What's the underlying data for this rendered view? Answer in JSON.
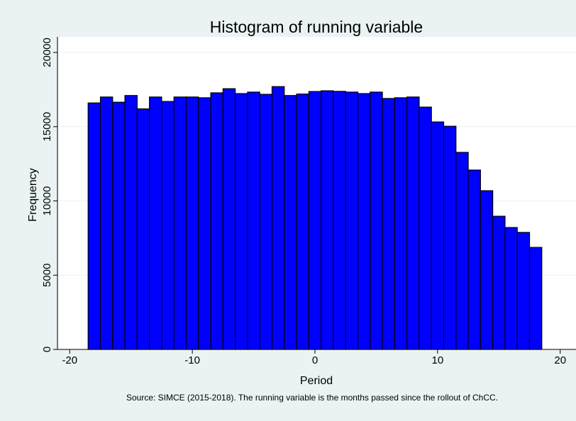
{
  "chart_data": {
    "type": "histogram",
    "title": "Histogram of running variable",
    "xlabel": "Period",
    "ylabel": "Frequency",
    "note": "Source: SIMCE (2015-2018). The running variable is the months passed since the rollout of ChCC.",
    "bins": [
      -18.5,
      -17.5,
      -16.5,
      -15.5,
      -14.5,
      -13.5,
      -12.5,
      -11.5,
      -10.5,
      -9.5,
      -8.5,
      -7.5,
      -6.5,
      -5.5,
      -4.5,
      -3.5,
      -2.5,
      -1.5,
      -0.5,
      0.5,
      1.5,
      2.5,
      3.5,
      4.5,
      5.5,
      6.5,
      7.5,
      8.5,
      9.5,
      10.5,
      11.5,
      12.5,
      13.5,
      14.5,
      15.5,
      16.5,
      17.5,
      18.5
    ],
    "values": [
      16600,
      17000,
      16650,
      17100,
      16200,
      17000,
      16700,
      17000,
      17000,
      16950,
      17280,
      17560,
      17230,
      17330,
      17180,
      17700,
      17100,
      17200,
      17370,
      17420,
      17380,
      17330,
      17230,
      17330,
      16900,
      16950,
      17000,
      16320,
      15320,
      15030,
      13270,
      12080,
      10690,
      8970,
      8210,
      7880,
      6870
    ],
    "color": "#0000ff",
    "xlim": [
      -21,
      21
    ],
    "xticks": [
      -20,
      -10,
      0,
      10,
      20
    ],
    "ylim": [
      0,
      20000
    ],
    "yticks": [
      0,
      5000,
      10000,
      15000,
      20000
    ],
    "grid": true
  }
}
